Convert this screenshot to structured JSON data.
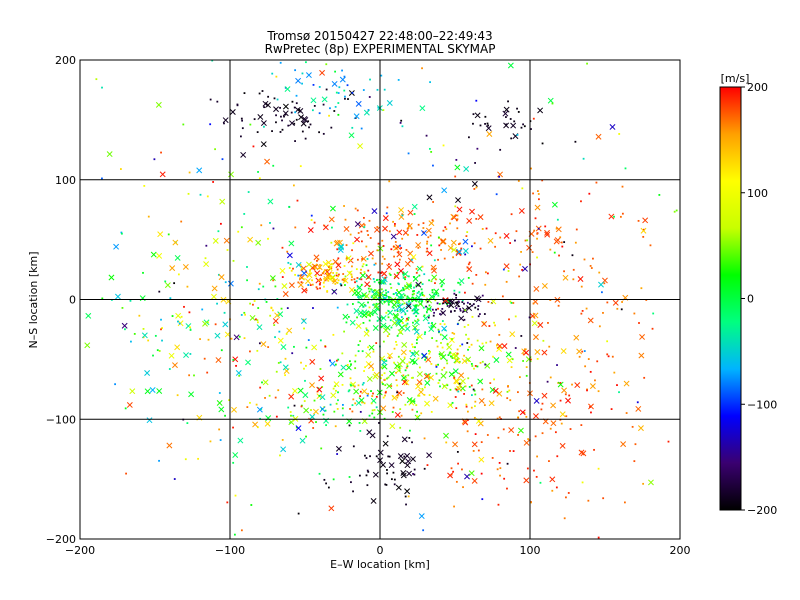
{
  "chart_data": {
    "type": "scatter",
    "title": "Tromsø 20150427 22:48:00–22:49:43",
    "subtitle": "RwPretec (8p) EXPERIMENTAL SKYMAP",
    "xlabel": "E–W location [km]",
    "ylabel": "N–S location [km]",
    "xlim": [
      -200,
      200
    ],
    "ylim": [
      -200,
      200
    ],
    "x_ticks": [
      -200,
      -100,
      0,
      100,
      200
    ],
    "y_ticks": [
      -200,
      -100,
      0,
      100,
      200
    ],
    "x_tick_labels": [
      "−200",
      "−100",
      "0",
      "100",
      "200"
    ],
    "y_tick_labels": [
      "−200",
      "−100",
      "0",
      "100",
      "200"
    ],
    "grid": true,
    "markers": [
      "dot",
      "x"
    ],
    "colorbar": {
      "label": "[m/s]",
      "range": [
        -200,
        200
      ],
      "ticks": [
        200,
        100,
        0,
        -100,
        -200
      ],
      "tick_labels": [
        "200",
        "100",
        "0",
        "−100",
        "−200"
      ],
      "colormap": [
        "#000000",
        "#3a0070",
        "#0000ff",
        "#00b4ff",
        "#00ff80",
        "#00ff00",
        "#c8ff00",
        "#ffff00",
        "#ffa000",
        "#ff0000"
      ]
    },
    "clusters": [
      {
        "x": 10,
        "y": 0,
        "sx": 18,
        "sy": 14,
        "n": 300,
        "vel": [
          -60,
          60
        ]
      },
      {
        "x": -35,
        "y": 20,
        "sx": 14,
        "sy": 7,
        "n": 120,
        "vel": [
          80,
          200
        ]
      },
      {
        "x": 15,
        "y": 45,
        "sx": 30,
        "sy": 15,
        "n": 150,
        "vel": [
          150,
          200
        ]
      },
      {
        "x": 50,
        "y": -5,
        "sx": 10,
        "sy": 5,
        "n": 60,
        "vel": [
          -200,
          -150
        ]
      },
      {
        "x": 40,
        "y": -50,
        "sx": 30,
        "sy": 20,
        "n": 220,
        "vel": [
          0,
          150
        ]
      },
      {
        "x": -10,
        "y": -80,
        "sx": 35,
        "sy": 15,
        "n": 180,
        "vel": [
          -50,
          200
        ]
      },
      {
        "x": 5,
        "y": -140,
        "sx": 15,
        "sy": 15,
        "n": 60,
        "vel": [
          -200,
          -180
        ]
      },
      {
        "x": 100,
        "y": -100,
        "sx": 40,
        "sy": 40,
        "n": 160,
        "vel": [
          150,
          200
        ]
      },
      {
        "x": -60,
        "y": 155,
        "sx": 25,
        "sy": 12,
        "n": 70,
        "vel": [
          -200,
          -180
        ]
      },
      {
        "x": 80,
        "y": 150,
        "sx": 15,
        "sy": 10,
        "n": 30,
        "vel": [
          -200,
          -180
        ]
      },
      {
        "x": -20,
        "y": 170,
        "sx": 25,
        "sy": 15,
        "n": 50,
        "vel": [
          -100,
          -20
        ]
      },
      {
        "x": -100,
        "y": -20,
        "sx": 50,
        "sy": 50,
        "n": 200,
        "vel": [
          -80,
          200
        ]
      },
      {
        "x": 120,
        "y": 30,
        "sx": 45,
        "sy": 50,
        "n": 140,
        "vel": [
          150,
          200
        ]
      },
      {
        "x": 0,
        "y": 0,
        "sx": 110,
        "sy": 110,
        "n": 350,
        "vel": [
          -200,
          200
        ]
      }
    ]
  }
}
